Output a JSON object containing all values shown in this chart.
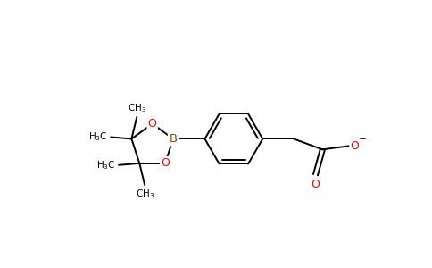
{
  "background_color": "#ffffff",
  "bond_color": "#000000",
  "oxygen_color": "#ff0000",
  "boron_color": "#8b4513",
  "figsize": [
    4.84,
    3.0
  ],
  "dpi": 100,
  "xlim": [
    0,
    9.5
  ],
  "ylim": [
    0.5,
    6.0
  ]
}
